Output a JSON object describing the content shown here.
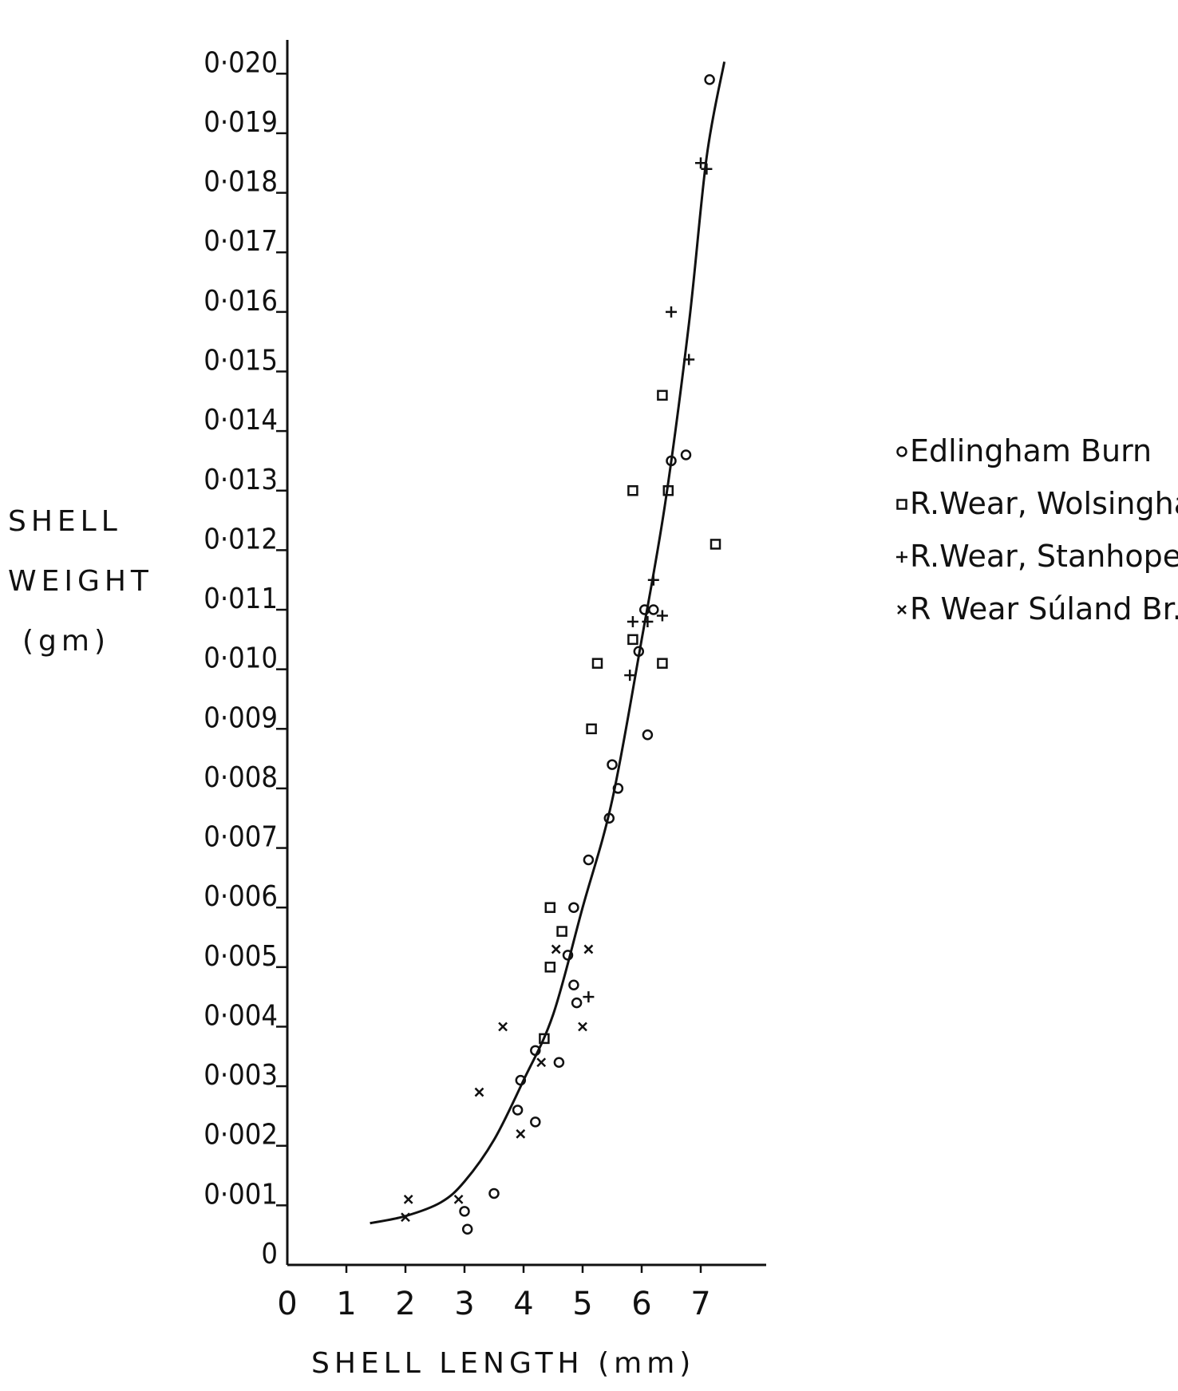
{
  "chart_data": {
    "type": "scatter",
    "title": "",
    "ylabel_lines": [
      "SHELL",
      "WEIGHT",
      "(gm)"
    ],
    "xlabel": "SHELL LENGTH (mm)",
    "xlim": [
      0,
      8
    ],
    "ylim": [
      0,
      0.0205
    ],
    "x_ticks": [
      "0",
      "1",
      "2",
      "3",
      "4",
      "5",
      "6",
      "7"
    ],
    "y_ticks": [
      "0",
      "0·001",
      "0·002",
      "0·003",
      "0·004",
      "0·005",
      "0·006",
      "0·007",
      "0·008",
      "0·009",
      "0·010",
      "0·011",
      "0·012",
      "0·013",
      "0·014",
      "0·015",
      "0·016",
      "0·017",
      "0·018",
      "0·019",
      "0·020"
    ],
    "grid": false,
    "legend_position": "right",
    "series": [
      {
        "name": "Edlingham Burn",
        "marker": "circle",
        "points": [
          [
            3.0,
            0.0009
          ],
          [
            3.05,
            0.0006
          ],
          [
            3.5,
            0.0012
          ],
          [
            3.9,
            0.0026
          ],
          [
            3.95,
            0.0031
          ],
          [
            4.2,
            0.0024
          ],
          [
            4.2,
            0.0036
          ],
          [
            4.6,
            0.0034
          ],
          [
            4.75,
            0.0052
          ],
          [
            4.85,
            0.0047
          ],
          [
            4.85,
            0.006
          ],
          [
            4.9,
            0.0044
          ],
          [
            5.1,
            0.0068
          ],
          [
            5.45,
            0.0075
          ],
          [
            5.5,
            0.0084
          ],
          [
            5.6,
            0.008
          ],
          [
            5.95,
            0.0103
          ],
          [
            6.05,
            0.011
          ],
          [
            6.1,
            0.0089
          ],
          [
            6.2,
            0.011
          ],
          [
            6.5,
            0.0135
          ],
          [
            6.75,
            0.0136
          ],
          [
            7.15,
            0.0199
          ]
        ]
      },
      {
        "name": "R.Wear, Wolsingham",
        "marker": "square",
        "points": [
          [
            4.35,
            0.0038
          ],
          [
            4.45,
            0.005
          ],
          [
            4.45,
            0.006
          ],
          [
            4.65,
            0.0056
          ],
          [
            5.15,
            0.009
          ],
          [
            5.25,
            0.0101
          ],
          [
            5.85,
            0.0105
          ],
          [
            5.85,
            0.013
          ],
          [
            6.35,
            0.0146
          ],
          [
            6.35,
            0.0101
          ],
          [
            6.45,
            0.013
          ],
          [
            7.25,
            0.0121
          ]
        ]
      },
      {
        "name": "R.Wear, Stanhope",
        "marker": "plus",
        "points": [
          [
            5.1,
            0.0045
          ],
          [
            5.8,
            0.0099
          ],
          [
            5.85,
            0.0108
          ],
          [
            6.1,
            0.0108
          ],
          [
            6.2,
            0.0115
          ],
          [
            6.35,
            0.0109
          ],
          [
            6.5,
            0.016
          ],
          [
            6.8,
            0.0152
          ],
          [
            7.0,
            0.0185
          ],
          [
            7.1,
            0.0184
          ]
        ]
      },
      {
        "name": "R Wear Súland Br.",
        "marker": "cross",
        "points": [
          [
            2.0,
            0.0008
          ],
          [
            2.05,
            0.0011
          ],
          [
            2.9,
            0.0011
          ],
          [
            3.25,
            0.0029
          ],
          [
            3.65,
            0.004
          ],
          [
            3.95,
            0.0022
          ],
          [
            4.3,
            0.0034
          ],
          [
            4.55,
            0.0053
          ],
          [
            5.0,
            0.004
          ],
          [
            5.1,
            0.0053
          ]
        ]
      }
    ],
    "fit_curve": {
      "name": "",
      "points": [
        [
          1.4,
          0.0007
        ],
        [
          2.0,
          0.00082
        ],
        [
          2.6,
          0.00105
        ],
        [
          3.0,
          0.0014
        ],
        [
          3.5,
          0.0021
        ],
        [
          4.0,
          0.0031
        ],
        [
          4.5,
          0.0042
        ],
        [
          5.0,
          0.006
        ],
        [
          5.5,
          0.0078
        ],
        [
          6.0,
          0.0105
        ],
        [
          6.4,
          0.0128
        ],
        [
          6.8,
          0.0158
        ],
        [
          7.1,
          0.0186
        ],
        [
          7.4,
          0.0202
        ]
      ]
    }
  }
}
